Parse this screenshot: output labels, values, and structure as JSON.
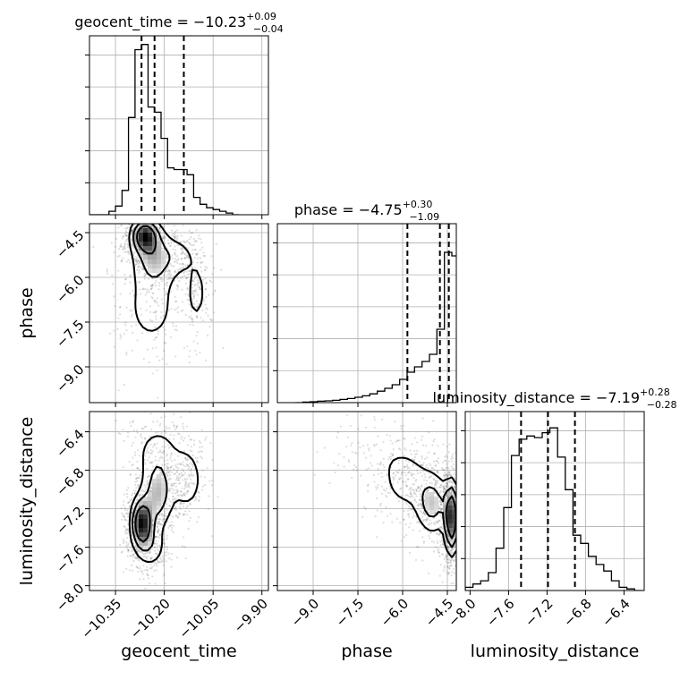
{
  "chart_data": {
    "type": "corner",
    "parameters": [
      "geocent_time",
      "phase",
      "luminosity_distance"
    ],
    "titles": [
      {
        "param": "geocent_time",
        "prefix": "geocent_time = ",
        "median": "−10.23",
        "plus": "+0.09",
        "minus": "−0.04"
      },
      {
        "param": "phase",
        "prefix": "phase = ",
        "median": "−4.75",
        "plus": "+0.30",
        "minus": "−1.09"
      },
      {
        "param": "luminosity_distance",
        "prefix": "luminosity_distance = ",
        "median": "−7.19",
        "plus": "+0.28",
        "minus": "−0.28"
      }
    ],
    "axis_labels": {
      "x": [
        "geocent_time",
        "phase",
        "luminosity_distance"
      ],
      "y": [
        "phase",
        "luminosity_distance"
      ]
    },
    "ranges": {
      "geocent_time": [
        -10.43,
        -9.88
      ],
      "phase": [
        -10.2,
        -4.2
      ],
      "luminosity_distance": [
        -8.05,
        -6.19
      ]
    },
    "ticks": {
      "geocent_time": {
        "values": [
          -10.35,
          -10.2,
          -10.05,
          -9.9
        ],
        "labels": [
          "−10.35",
          "−10.20",
          "−10.05",
          "−9.90"
        ]
      },
      "phase": {
        "values": [
          -9.0,
          -7.5,
          -6.0,
          -4.5
        ],
        "labels": [
          "−9.0",
          "−7.5",
          "−6.0",
          "−4.5"
        ]
      },
      "luminosity_distance": {
        "values": [
          -8.0,
          -7.6,
          -7.2,
          -6.8,
          -6.4
        ],
        "labels": [
          "−8.0",
          "−7.6",
          "−7.2",
          "−6.8",
          "−6.4"
        ]
      }
    },
    "quantiles": {
      "geocent_time": [
        -10.27,
        -10.23,
        -10.14
      ],
      "phase": [
        -5.84,
        -4.75,
        -4.45
      ],
      "luminosity_distance": [
        -7.47,
        -7.19,
        -6.91
      ]
    },
    "histograms": {
      "geocent_time": {
        "edges": [
          -10.43,
          -10.41,
          -10.39,
          -10.37,
          -10.35,
          -10.33,
          -10.31,
          -10.29,
          -10.27,
          -10.25,
          -10.23,
          -10.21,
          -10.19,
          -10.17,
          -10.15,
          -10.13,
          -10.11,
          -10.09,
          -10.07,
          -10.05,
          -10.03,
          -10.01,
          -9.99,
          -9.97
        ],
        "counts": [
          0,
          0,
          0,
          0.02,
          0.05,
          0.14,
          0.56,
          0.95,
          0.98,
          0.62,
          0.59,
          0.44,
          0.27,
          0.26,
          0.26,
          0.23,
          0.1,
          0.06,
          0.04,
          0.03,
          0.02,
          0.01,
          0
        ],
        "ylim": [
          0,
          1.03
        ]
      },
      "phase": {
        "edges": [
          -9.6,
          -9.35,
          -9.1,
          -8.85,
          -8.6,
          -8.35,
          -8.1,
          -7.85,
          -7.6,
          -7.35,
          -7.1,
          -6.85,
          -6.6,
          -6.35,
          -6.1,
          -5.85,
          -5.6,
          -5.35,
          -5.1,
          -4.85,
          -4.6,
          -4.35,
          -4.1
        ],
        "counts": [
          0,
          0.003,
          0.005,
          0.008,
          0.01,
          0.013,
          0.018,
          0.023,
          0.03,
          0.038,
          0.049,
          0.064,
          0.08,
          0.1,
          0.13,
          0.17,
          0.2,
          0.23,
          0.27,
          0.41,
          0.84,
          0.82
        ],
        "ylim": [
          0,
          1.0
        ]
      },
      "luminosity_distance": {
        "edges": [
          -8.05,
          -7.97,
          -7.89,
          -7.81,
          -7.73,
          -7.65,
          -7.57,
          -7.49,
          -7.41,
          -7.33,
          -7.25,
          -7.17,
          -7.09,
          -7.01,
          -6.93,
          -6.85,
          -6.77,
          -6.69,
          -6.61,
          -6.53,
          -6.45,
          -6.37,
          -6.29,
          -6.21
        ],
        "counts": [
          0.02,
          0.04,
          0.06,
          0.11,
          0.26,
          0.51,
          0.83,
          0.93,
          0.95,
          0.94,
          0.97,
          1.0,
          0.82,
          0.62,
          0.34,
          0.29,
          0.21,
          0.16,
          0.12,
          0.06,
          0.02,
          0.01,
          0.0
        ],
        "ylim": [
          0,
          1.1
        ]
      }
    },
    "density_blobs": {
      "phase_vs_geocent_time": [
        {
          "x": -10.26,
          "y": -4.6,
          "sx": 0.025,
          "sy": 0.35,
          "w": 1.0
        },
        {
          "x": -10.23,
          "y": -5.3,
          "sx": 0.04,
          "sy": 0.6,
          "w": 0.55
        },
        {
          "x": -10.15,
          "y": -5.3,
          "sx": 0.03,
          "sy": 0.4,
          "w": 0.25
        },
        {
          "x": -10.1,
          "y": -6.5,
          "sx": 0.02,
          "sy": 0.7,
          "w": 0.3
        },
        {
          "x": -10.24,
          "y": -7.0,
          "sx": 0.06,
          "sy": 1.0,
          "w": 0.3
        }
      ],
      "luminosity_distance_vs_geocent_time": [
        {
          "x": -10.27,
          "y": -7.35,
          "sx": 0.02,
          "sy": 0.16,
          "w": 1.0
        },
        {
          "x": -10.22,
          "y": -7.05,
          "sx": 0.03,
          "sy": 0.22,
          "w": 0.55
        },
        {
          "x": -10.13,
          "y": -6.9,
          "sx": 0.03,
          "sy": 0.2,
          "w": 0.35
        },
        {
          "x": -10.22,
          "y": -6.6,
          "sx": 0.05,
          "sy": 0.2,
          "w": 0.25
        },
        {
          "x": -10.24,
          "y": -7.6,
          "sx": 0.03,
          "sy": 0.15,
          "w": 0.3
        }
      ],
      "luminosity_distance_vs_phase": [
        {
          "x": -4.35,
          "y": -7.3,
          "sx": 0.15,
          "sy": 0.22,
          "w": 1.0
        },
        {
          "x": -5.0,
          "y": -7.15,
          "sx": 0.35,
          "sy": 0.2,
          "w": 0.5
        },
        {
          "x": -5.9,
          "y": -6.9,
          "sx": 0.5,
          "sy": 0.2,
          "w": 0.3
        },
        {
          "x": -7.0,
          "y": -6.6,
          "sx": 0.7,
          "sy": 0.18,
          "w": 0.12
        }
      ]
    },
    "grid": true,
    "colors": {
      "line": "#000000",
      "grid": "#b0b0b0",
      "scatter": "#000000"
    }
  }
}
